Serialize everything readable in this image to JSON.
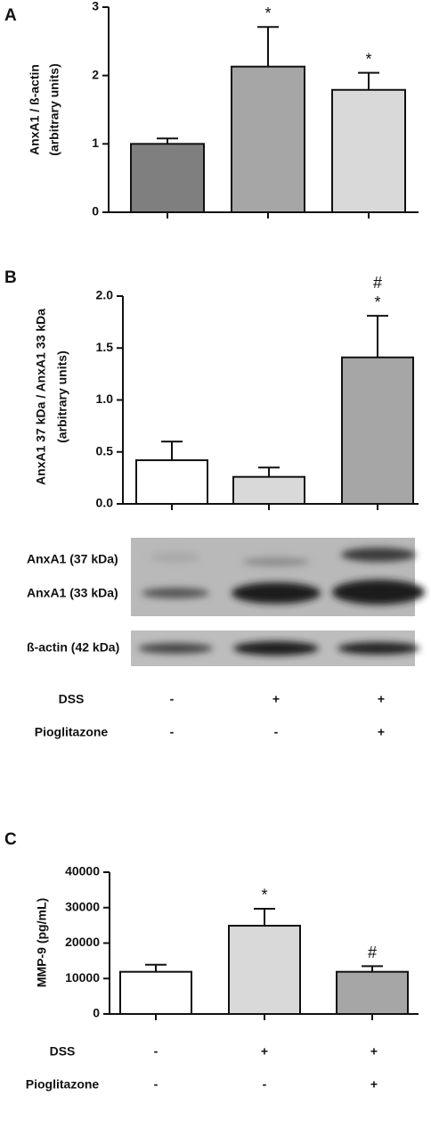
{
  "chart_data": [
    {
      "type": "bar",
      "panel_label": "A",
      "ylabel": [
        "AnxA1 / ß-actin",
        "(arbitrary units)"
      ],
      "categories": [
        null,
        null,
        null
      ],
      "values": [
        1.0,
        2.13,
        1.79
      ],
      "errors": [
        0.08,
        0.58,
        0.25
      ],
      "colors": [
        "#7f7f7f",
        "#a6a6a6",
        "#d9d9d9"
      ],
      "annotations": [
        null,
        "*",
        "*"
      ],
      "ylim": [
        0,
        3
      ],
      "yticks": [
        0,
        1,
        2,
        3
      ]
    },
    {
      "type": "bar",
      "panel_label": "B",
      "ylabel": [
        "AnxA1 37 kDa / AnxA1 33 kDa",
        "(arbitrary units)"
      ],
      "categories": [
        null,
        null,
        null
      ],
      "values": [
        0.42,
        0.26,
        1.41
      ],
      "errors": [
        0.18,
        0.09,
        0.4
      ],
      "colors": [
        "#ffffff",
        "#d9d9d9",
        "#a6a6a6"
      ],
      "annotations": [
        null,
        null,
        [
          "#",
          "*"
        ]
      ],
      "ylim": [
        0,
        2
      ],
      "yticks": [
        {
          "value": 0,
          "label": "0.0"
        },
        0.5,
        {
          "value": 1,
          "label": "1.0"
        },
        1.5,
        {
          "value": 2,
          "label": "2.0"
        }
      ],
      "blot_labels": [
        "AnxA1 (37 kDa)",
        "AnxA1 (33 kDa)",
        "ß-actin (42 kDa)"
      ],
      "treatments": [
        {
          "name": "DSS",
          "marks": [
            "-",
            "+",
            "+"
          ]
        },
        {
          "name": "Pioglitazone",
          "marks": [
            "-",
            "-",
            "+"
          ]
        }
      ]
    },
    {
      "type": "bar",
      "panel_label": "C",
      "ylabel": [
        "MMP-9 (pg/mL)"
      ],
      "categories": [
        null,
        null,
        null
      ],
      "values": [
        11900,
        24900,
        11900
      ],
      "errors": [
        2000,
        4800,
        1600
      ],
      "colors": [
        "#ffffff",
        "#d9d9d9",
        "#a6a6a6"
      ],
      "annotations": [
        null,
        "*",
        "#"
      ],
      "ylim": [
        0,
        40000
      ],
      "yticks": [
        0,
        10000,
        20000,
        30000,
        40000
      ],
      "treatments": [
        {
          "name": "DSS",
          "marks": [
            "-",
            "+",
            "+"
          ]
        },
        {
          "name": "Pioglitazone",
          "marks": [
            "-",
            "-",
            "+"
          ]
        }
      ]
    }
  ]
}
